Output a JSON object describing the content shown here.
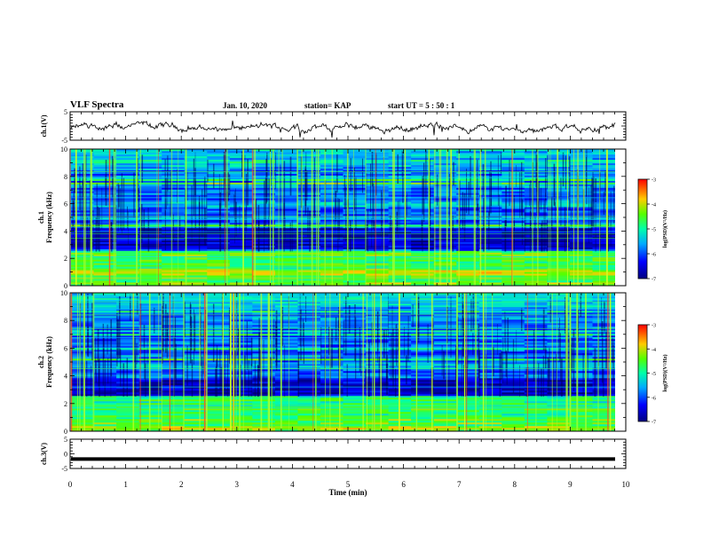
{
  "header": {
    "title": "VLF Spectra",
    "date": "Jan. 10, 2020",
    "station": "station= KAP",
    "start_ut": "start UT =  5 : 50 : 1"
  },
  "chart_data": [
    {
      "type": "line",
      "ylabel": "ch.1(V)",
      "ylim": [
        -5,
        5
      ],
      "yticks": [
        5,
        -5
      ],
      "xlim": [
        0,
        10
      ],
      "description_values": "noisy waveform fluctuating roughly between -2 and 1 V"
    },
    {
      "type": "heatmap",
      "ylabel_top": "ch.1",
      "ylabel": "Frequency (kHz)",
      "ylim": [
        0,
        10
      ],
      "yticks": [
        0,
        2,
        4,
        6,
        8,
        10
      ],
      "xlim": [
        0,
        10
      ],
      "colorbar": {
        "label": "log(PSD)(V²/Hz)",
        "range": [
          -7,
          -3
        ],
        "ticks": [
          -3,
          -4,
          -5,
          -6,
          -7
        ]
      }
    },
    {
      "type": "heatmap",
      "ylabel_top": "ch.2",
      "ylabel": "Frequency (kHz)",
      "ylim": [
        0,
        10
      ],
      "yticks": [
        0,
        2,
        4,
        6,
        8,
        10
      ],
      "xlim": [
        0,
        10
      ],
      "colorbar": {
        "label": "log(PSD)(V²/Hz)",
        "range": [
          -7,
          -3
        ],
        "ticks": [
          -3,
          -4,
          -5,
          -6,
          -7
        ]
      }
    },
    {
      "type": "line",
      "ylabel": "ch.3(V)",
      "ylim": [
        -5,
        5
      ],
      "yticks": [
        5,
        0,
        -5
      ],
      "xlim": [
        0,
        10
      ],
      "xlabel": "Time (min)",
      "xticks": [
        0,
        1,
        2,
        3,
        4,
        5,
        6,
        7,
        8,
        9,
        10
      ],
      "constant_value": -1.8
    }
  ]
}
